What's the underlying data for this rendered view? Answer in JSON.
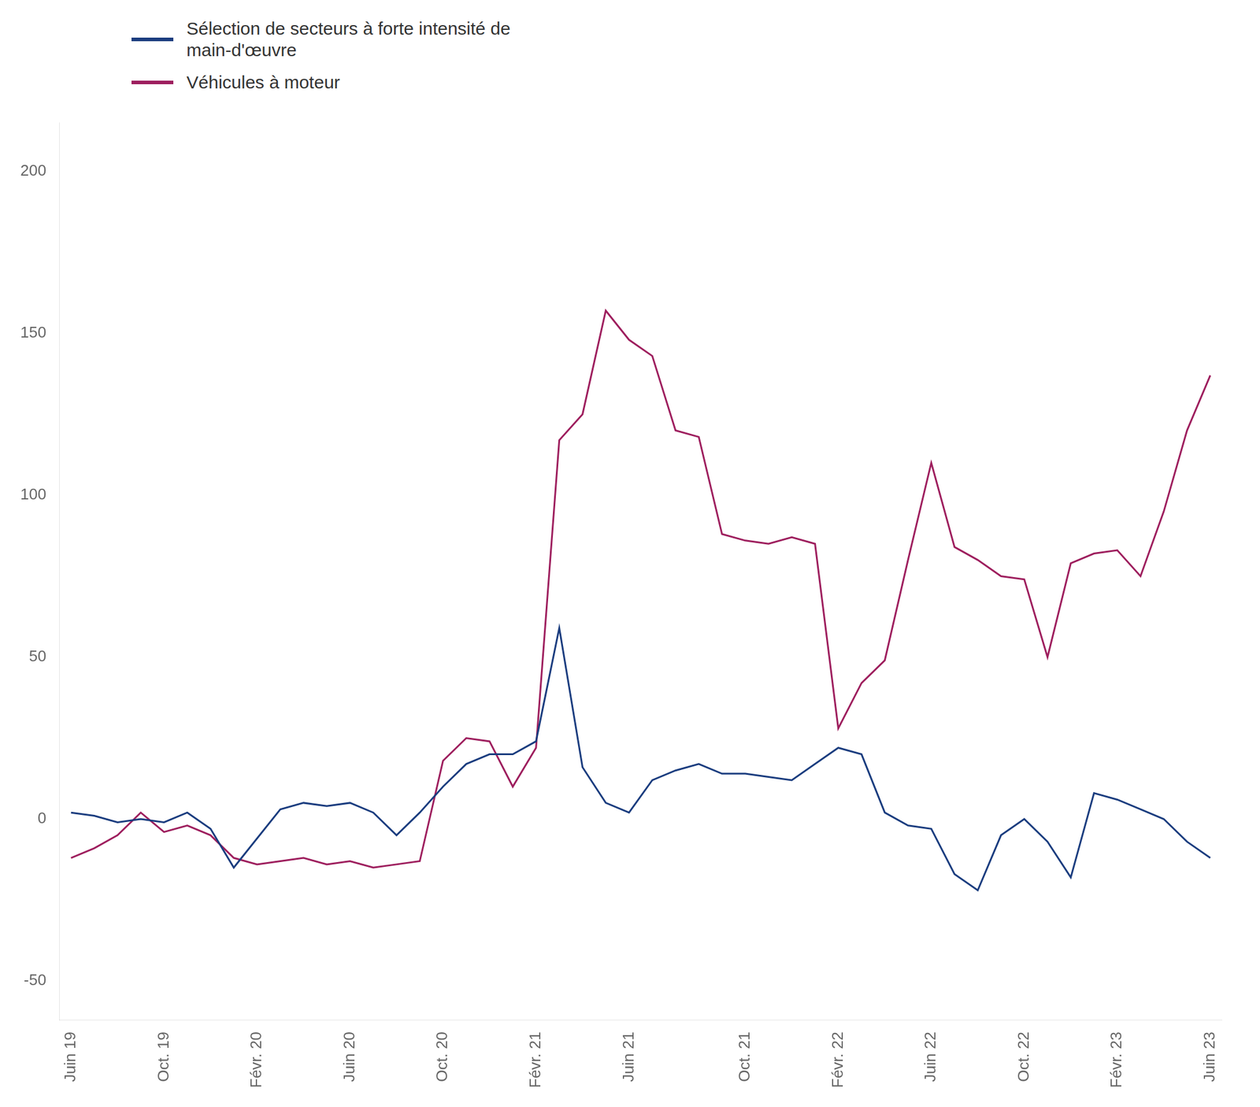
{
  "chart_data": {
    "type": "line",
    "categories": [
      "Juin 19",
      null,
      null,
      null,
      "Oct. 19",
      null,
      null,
      null,
      "Févr. 20",
      null,
      null,
      null,
      "Juin 20",
      null,
      null,
      null,
      "Oct. 20",
      null,
      null,
      null,
      "Févr. 21",
      null,
      null,
      null,
      "Juin 21",
      null,
      null,
      null,
      null,
      "Oct. 21",
      null,
      null,
      null,
      "Févr. 22",
      null,
      null,
      null,
      "Juin 22",
      null,
      null,
      null,
      "Oct. 22",
      null,
      null,
      null,
      "Févr. 23",
      null,
      null,
      null,
      "Juin 23"
    ],
    "series": [
      {
        "name": "Sélection de secteurs à forte intensité de\nmain-d'œuvre",
        "color": "#1b3d7f",
        "values": [
          2,
          1,
          -1,
          0,
          -1,
          2,
          -3,
          -15,
          -6,
          3,
          5,
          4,
          5,
          2,
          -5,
          2,
          10,
          17,
          20,
          20,
          24,
          59,
          16,
          5,
          2,
          12,
          15,
          17,
          14,
          14,
          13,
          12,
          17,
          22,
          20,
          2,
          -2,
          -3,
          -17,
          -22,
          -5,
          0,
          -7,
          -18,
          8,
          6,
          3,
          0,
          -7,
          -12
        ]
      },
      {
        "name": "Véhicules à moteur",
        "color": "#9e1f5e",
        "values": [
          -12,
          -9,
          -5,
          2,
          -4,
          -2,
          -5,
          -12,
          -14,
          -13,
          -12,
          -14,
          -13,
          -15,
          -14,
          -13,
          18,
          25,
          24,
          10,
          22,
          117,
          125,
          157,
          148,
          143,
          120,
          118,
          88,
          86,
          85,
          87,
          85,
          28,
          42,
          49,
          80,
          110,
          84,
          80,
          75,
          74,
          50,
          79,
          82,
          83,
          75,
          95,
          120,
          137
        ]
      }
    ],
    "ylim": [
      -62,
      215
    ],
    "yticks": [
      -50,
      0,
      50,
      100,
      150,
      200
    ],
    "grid": false,
    "legend": "upper left"
  }
}
